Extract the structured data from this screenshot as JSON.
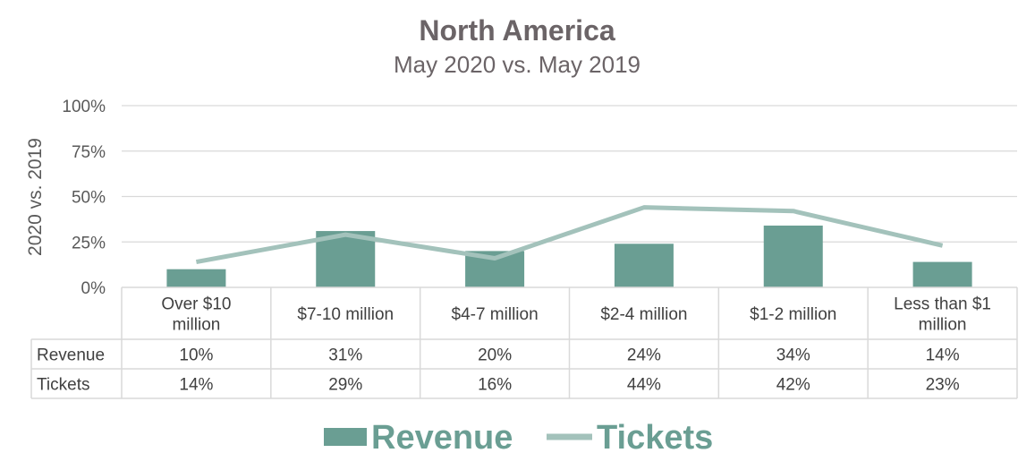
{
  "chart_data": {
    "type": "bar",
    "title": "North America",
    "subtitle": "May 2020 vs. May 2019",
    "ylabel": "2020 vs. 2019",
    "ylim": [
      0,
      100
    ],
    "yticks": [
      "0%",
      "25%",
      "50%",
      "75%",
      "100%"
    ],
    "grid": true,
    "legend_position": "bottom",
    "categories": [
      [
        "Over $10",
        "million"
      ],
      [
        "$7-10 million"
      ],
      [
        "$4-7 million"
      ],
      [
        "$2-4 million"
      ],
      [
        "$1-2 million"
      ],
      [
        "Less than $1",
        "million"
      ]
    ],
    "series": [
      {
        "name": "Revenue",
        "type": "bar",
        "color": "#6a9e93",
        "values": [
          10,
          31,
          20,
          24,
          34,
          14
        ],
        "labels": [
          "10%",
          "31%",
          "20%",
          "24%",
          "34%",
          "14%"
        ]
      },
      {
        "name": "Tickets",
        "type": "line",
        "color": "#a3c2bb",
        "values": [
          14,
          29,
          16,
          44,
          42,
          23
        ],
        "labels": [
          "14%",
          "29%",
          "16%",
          "44%",
          "42%",
          "23%"
        ]
      }
    ]
  }
}
